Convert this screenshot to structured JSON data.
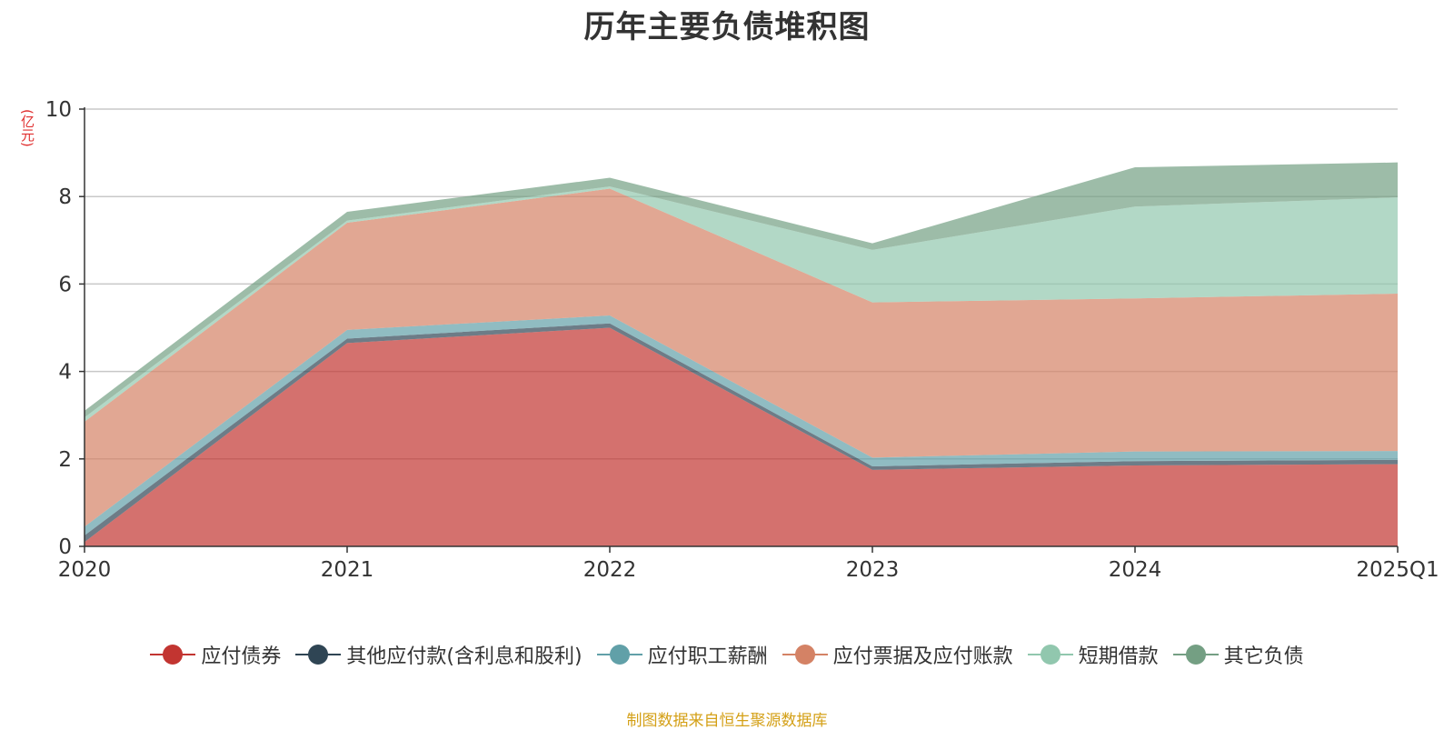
{
  "title": "历年主要负债堆积图",
  "unit_label": "(亿元)",
  "source": "制图数据来自恒生聚源数据库",
  "chart_data": {
    "type": "area",
    "stacked": true,
    "title": "历年主要负债堆积图",
    "ylabel": "(亿元)",
    "xlabel": "",
    "categories": [
      "2020",
      "2021",
      "2022",
      "2023",
      "2024",
      "2025Q1"
    ],
    "ylim": [
      0,
      10
    ],
    "yticks": [
      0,
      2,
      4,
      6,
      8,
      10
    ],
    "grid": true,
    "legend_position": "bottom",
    "series": [
      {
        "name": "应付债券",
        "color": "#c23531",
        "values": [
          0.1,
          4.65,
          5.0,
          1.75,
          1.85,
          1.88
        ]
      },
      {
        "name": "其他应付款(含利息和股利)",
        "color": "#2f4554",
        "values": [
          0.15,
          0.1,
          0.1,
          0.08,
          0.1,
          0.1
        ]
      },
      {
        "name": "应付职工薪酬",
        "color": "#61a0a8",
        "values": [
          0.2,
          0.2,
          0.18,
          0.2,
          0.22,
          0.2
        ]
      },
      {
        "name": "应付票据及应付账款",
        "color": "#d48265",
        "values": [
          2.4,
          2.45,
          2.9,
          3.55,
          3.5,
          3.6
        ]
      },
      {
        "name": "短期借款",
        "color": "#91c7ae",
        "values": [
          0.1,
          0.05,
          0.05,
          1.2,
          2.1,
          2.2
        ]
      },
      {
        "name": "其它负债",
        "color": "#749f83",
        "values": [
          0.15,
          0.2,
          0.2,
          0.15,
          0.9,
          0.8
        ]
      }
    ]
  }
}
